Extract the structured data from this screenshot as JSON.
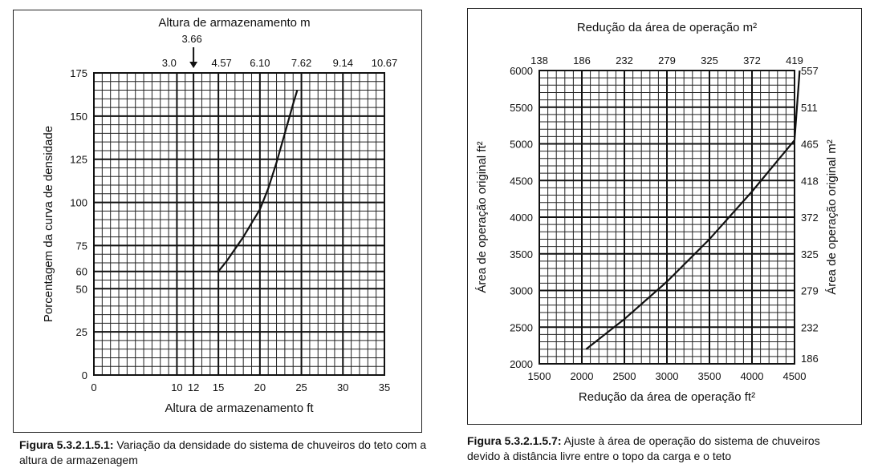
{
  "chart_data": [
    {
      "type": "line",
      "title": "Altura de armazenamento m",
      "xlabel": "Altura de armazenamento ft",
      "ylabel": "Porcentagem da curva de densidade",
      "xlim": [
        0,
        35
      ],
      "ylim": [
        0,
        175
      ],
      "x_ticks": [
        "0",
        "10",
        "12",
        "15",
        "20",
        "25",
        "30",
        "35"
      ],
      "x_tick_values": [
        0,
        10,
        12,
        15,
        20,
        25,
        30,
        35
      ],
      "y_ticks": [
        "0",
        "25",
        "50",
        "60",
        "75",
        "100",
        "125",
        "150",
        "175"
      ],
      "y_tick_values": [
        0,
        25,
        50,
        60,
        75,
        100,
        125,
        150,
        175
      ],
      "top_axis": {
        "ticks": [
          "3.0",
          "4.57",
          "6.10",
          "7.62",
          "9.14",
          "10.67"
        ],
        "tick_values": [
          9.84,
          15,
          20,
          25,
          30,
          35
        ],
        "marker_label": "3.66",
        "marker_value": 12
      },
      "series": [
        {
          "x": [
            15,
            16,
            17,
            18,
            19,
            20,
            21,
            22,
            23,
            24,
            24.5
          ],
          "y": [
            60,
            66,
            73,
            80,
            88,
            96,
            108,
            123,
            140,
            157,
            165
          ]
        }
      ],
      "grid": true
    },
    {
      "type": "line",
      "title": "Redução da área de operação m²",
      "xlabel": "Redução da área de operação ft²",
      "ylabel": "Área de operação original ft²",
      "ylabel_right": "Área de operação original m²",
      "xlim": [
        1500,
        4500
      ],
      "ylim": [
        2000,
        6000
      ],
      "x_ticks": [
        "1500",
        "2000",
        "2500",
        "3000",
        "3500",
        "4000",
        "4500"
      ],
      "x_tick_values": [
        1500,
        2000,
        2500,
        3000,
        3500,
        4000,
        4500
      ],
      "y_ticks": [
        "2000",
        "2500",
        "3000",
        "3500",
        "4000",
        "4500",
        "5000",
        "5500",
        "6000"
      ],
      "y_tick_values": [
        2000,
        2500,
        3000,
        3500,
        4000,
        4500,
        5000,
        5500,
        6000
      ],
      "top_axis": {
        "ticks": [
          "138",
          "186",
          "232",
          "279",
          "325",
          "372",
          "419"
        ],
        "tick_values": [
          1500,
          2000,
          2500,
          3000,
          3500,
          4000,
          4500
        ]
      },
      "right_axis": {
        "ticks": [
          "186",
          "232",
          "279",
          "325",
          "372",
          "418",
          "465",
          "511",
          "557"
        ],
        "tick_values": [
          2000,
          2500,
          3000,
          3500,
          4000,
          4500,
          5000,
          5500,
          6000
        ]
      },
      "series": [
        {
          "x": [
            2050,
            2500,
            3000,
            3500,
            4000,
            4500,
            4560
          ],
          "y": [
            2200,
            2610,
            3120,
            3700,
            4350,
            5050,
            6000
          ]
        }
      ],
      "grid": true
    }
  ],
  "captions": {
    "left_label": "Figura 5.3.2.1.5.1:",
    "left_text": " Variação da densidade do sistema de chuveiros do teto com a altura de armazenagem",
    "right_label": "Figura 5.3.2.1.5.7:",
    "right_text": " Ajuste à área de operação do sistema de chuveiros devido à distância livre entre o topo da carga e o teto"
  }
}
